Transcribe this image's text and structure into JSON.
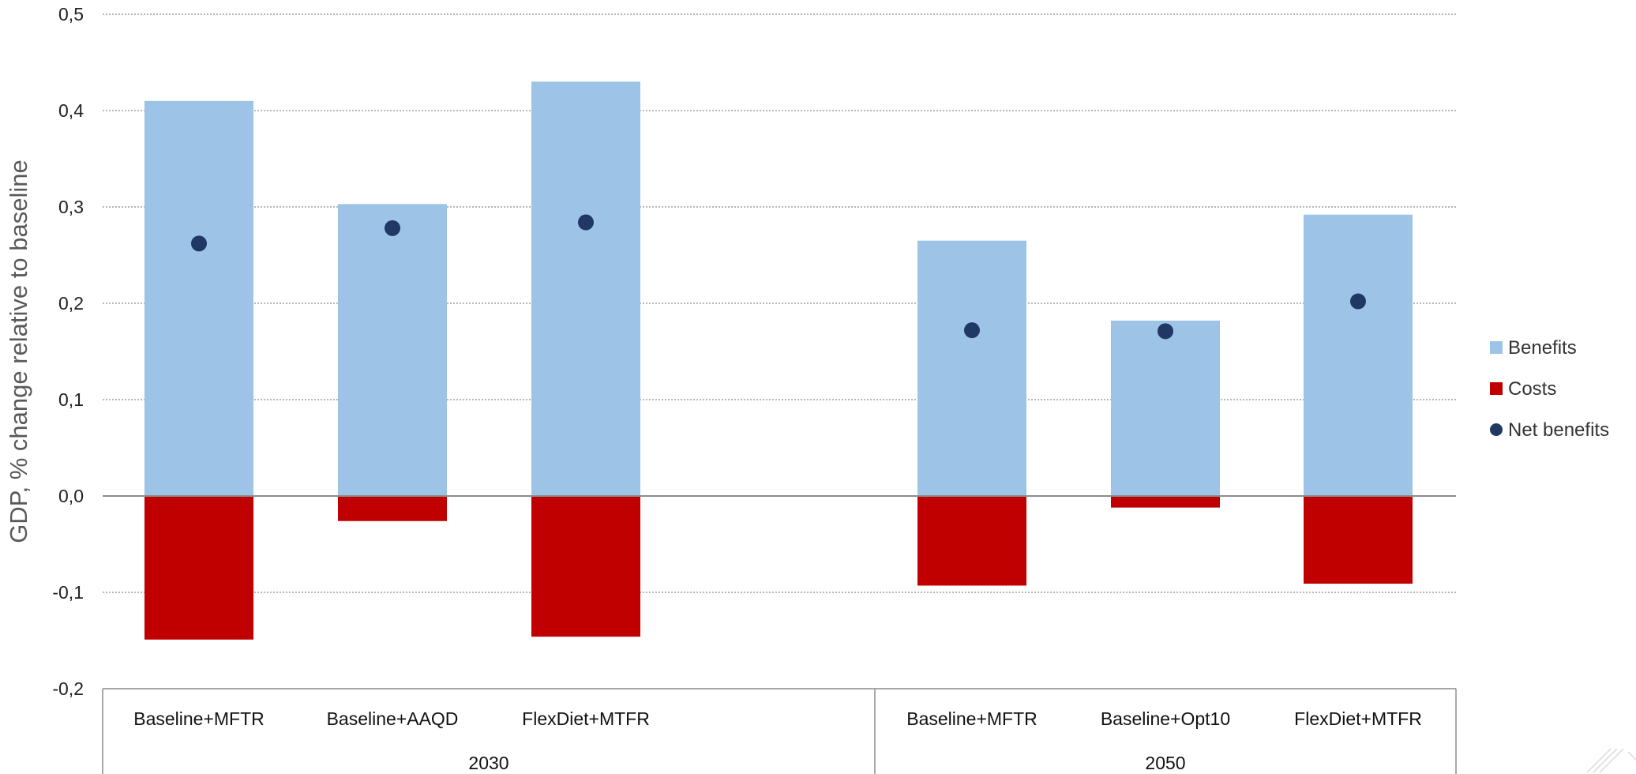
{
  "chart_data": {
    "type": "bar",
    "ylabel": "GDP, % change relative to baseline",
    "xlabel": "",
    "ylim": [
      -0.2,
      0.5
    ],
    "yticks": [
      0.5,
      0.4,
      0.3,
      0.2,
      0.1,
      0.0,
      -0.1,
      -0.2
    ],
    "ytick_labels": [
      "0,5",
      "0,4",
      "0,3",
      "0,2",
      "0,1",
      "0,0",
      "-0,1",
      "-0,2"
    ],
    "grid": true,
    "stacked": true,
    "legend_position": "right",
    "groups": [
      {
        "label": "2030",
        "categories": [
          "Baseline+MFTR",
          "Baseline+AAQD",
          "FlexDiet+MTFR"
        ]
      },
      {
        "label": "2050",
        "categories": [
          "Baseline+MFTR",
          "Baseline+Opt10",
          "FlexDiet+MTFR"
        ]
      }
    ],
    "categories": [
      "Baseline+MFTR",
      "Baseline+AAQD",
      "FlexDiet+MTFR",
      "Baseline+MFTR",
      "Baseline+Opt10",
      "FlexDiet+MTFR"
    ],
    "series": [
      {
        "name": "Benefits",
        "type": "bar",
        "color": "#9dc3e6",
        "values": [
          0.41,
          0.303,
          0.43,
          0.265,
          0.182,
          0.292
        ]
      },
      {
        "name": "Costs",
        "type": "bar",
        "color": "#c00000",
        "values": [
          -0.149,
          -0.026,
          -0.146,
          -0.093,
          -0.012,
          -0.091
        ]
      },
      {
        "name": "Net benefits",
        "type": "scatter",
        "color": "#1f3864",
        "values": [
          0.262,
          0.278,
          0.284,
          0.172,
          0.171,
          0.202
        ]
      }
    ]
  }
}
